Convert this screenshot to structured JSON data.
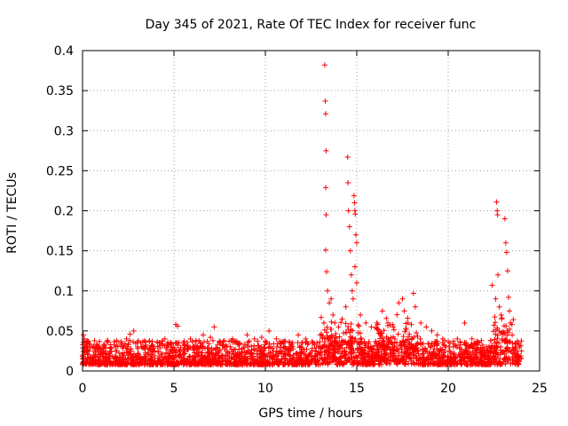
{
  "chart_data": {
    "type": "scatter",
    "title": "Day 345 of 2021, Rate Of TEC Index for receiver func",
    "xlabel": "GPS time / hours",
    "ylabel": "ROTI / TECUs",
    "xlim": [
      0,
      25
    ],
    "ylim": [
      0,
      0.4
    ],
    "xticks": [
      0,
      5,
      10,
      15,
      20,
      25
    ],
    "yticks": [
      0,
      0.05,
      0.1,
      0.15,
      0.2,
      0.25,
      0.3,
      0.35,
      0.4
    ],
    "xtick_labels": [
      "0",
      "5",
      "10",
      "15",
      "20",
      "25"
    ],
    "ytick_labels": [
      "0",
      "0.05",
      "0.1",
      "0.15",
      "0.2",
      "0.25",
      "0.3",
      "0.35",
      "0.4"
    ],
    "grid": true,
    "marker": "+",
    "color": "#ff0000",
    "points": [
      [
        0.05,
        0.045
      ],
      [
        0.1,
        0.04
      ],
      [
        0.15,
        0.035
      ],
      [
        0.2,
        0.03
      ],
      [
        0.3,
        0.025
      ],
      [
        0.6,
        0.02
      ],
      [
        0.9,
        0.03
      ],
      [
        1.2,
        0.032
      ],
      [
        1.5,
        0.028
      ],
      [
        1.8,
        0.03
      ],
      [
        2.1,
        0.035
      ],
      [
        2.4,
        0.04
      ],
      [
        2.6,
        0.046
      ],
      [
        2.8,
        0.05
      ],
      [
        3.0,
        0.03
      ],
      [
        3.4,
        0.028
      ],
      [
        3.8,
        0.025
      ],
      [
        4.2,
        0.035
      ],
      [
        4.5,
        0.04
      ],
      [
        4.8,
        0.03
      ],
      [
        5.1,
        0.058
      ],
      [
        5.2,
        0.056
      ],
      [
        5.5,
        0.035
      ],
      [
        5.9,
        0.04
      ],
      [
        6.2,
        0.038
      ],
      [
        6.6,
        0.045
      ],
      [
        7.0,
        0.042
      ],
      [
        7.2,
        0.055
      ],
      [
        7.5,
        0.035
      ],
      [
        7.9,
        0.03
      ],
      [
        8.2,
        0.04
      ],
      [
        8.6,
        0.035
      ],
      [
        9.0,
        0.045
      ],
      [
        9.4,
        0.04
      ],
      [
        9.8,
        0.042
      ],
      [
        10.2,
        0.05
      ],
      [
        10.6,
        0.04
      ],
      [
        11.0,
        0.035
      ],
      [
        11.4,
        0.03
      ],
      [
        11.8,
        0.045
      ],
      [
        12.2,
        0.04
      ],
      [
        12.6,
        0.035
      ],
      [
        13.0,
        0.045
      ],
      [
        13.2,
        0.06
      ],
      [
        13.25,
        0.382
      ],
      [
        13.28,
        0.337
      ],
      [
        13.3,
        0.321
      ],
      [
        13.32,
        0.275
      ],
      [
        13.3,
        0.229
      ],
      [
        13.32,
        0.195
      ],
      [
        13.3,
        0.151
      ],
      [
        13.35,
        0.124
      ],
      [
        13.4,
        0.1
      ],
      [
        13.5,
        0.085
      ],
      [
        13.6,
        0.09
      ],
      [
        13.7,
        0.07
      ],
      [
        13.8,
        0.06
      ],
      [
        14.0,
        0.055
      ],
      [
        14.2,
        0.065
      ],
      [
        14.4,
        0.08
      ],
      [
        14.5,
        0.267
      ],
      [
        14.52,
        0.235
      ],
      [
        14.55,
        0.2
      ],
      [
        14.6,
        0.18
      ],
      [
        14.65,
        0.15
      ],
      [
        14.7,
        0.12
      ],
      [
        14.75,
        0.1
      ],
      [
        14.8,
        0.09
      ],
      [
        14.85,
        0.219
      ],
      [
        14.88,
        0.21
      ],
      [
        14.9,
        0.2
      ],
      [
        14.92,
        0.196
      ],
      [
        14.95,
        0.17
      ],
      [
        15.0,
        0.16
      ],
      [
        14.9,
        0.13
      ],
      [
        15.0,
        0.11
      ],
      [
        15.2,
        0.07
      ],
      [
        15.5,
        0.06
      ],
      [
        15.8,
        0.055
      ],
      [
        16.1,
        0.06
      ],
      [
        16.4,
        0.075
      ],
      [
        16.7,
        0.06
      ],
      [
        17.0,
        0.055
      ],
      [
        17.3,
        0.085
      ],
      [
        17.5,
        0.09
      ],
      [
        17.6,
        0.075
      ],
      [
        17.8,
        0.06
      ],
      [
        18.1,
        0.097
      ],
      [
        18.2,
        0.08
      ],
      [
        18.5,
        0.06
      ],
      [
        18.8,
        0.055
      ],
      [
        19.1,
        0.05
      ],
      [
        19.4,
        0.045
      ],
      [
        19.7,
        0.04
      ],
      [
        20.1,
        0.035
      ],
      [
        20.5,
        0.04
      ],
      [
        20.9,
        0.06
      ],
      [
        21.3,
        0.04
      ],
      [
        21.7,
        0.035
      ],
      [
        22.1,
        0.03
      ],
      [
        22.4,
        0.107
      ],
      [
        22.6,
        0.09
      ],
      [
        22.65,
        0.211
      ],
      [
        22.68,
        0.2
      ],
      [
        22.7,
        0.195
      ],
      [
        22.72,
        0.12
      ],
      [
        22.8,
        0.08
      ],
      [
        22.9,
        0.07
      ],
      [
        23.1,
        0.19
      ],
      [
        23.15,
        0.16
      ],
      [
        23.2,
        0.148
      ],
      [
        23.25,
        0.125
      ],
      [
        23.3,
        0.092
      ],
      [
        23.35,
        0.075
      ],
      [
        23.4,
        0.06
      ],
      [
        23.5,
        0.045
      ],
      [
        23.7,
        0.035
      ],
      [
        23.9,
        0.03
      ],
      [
        24.0,
        0.025
      ]
    ]
  }
}
